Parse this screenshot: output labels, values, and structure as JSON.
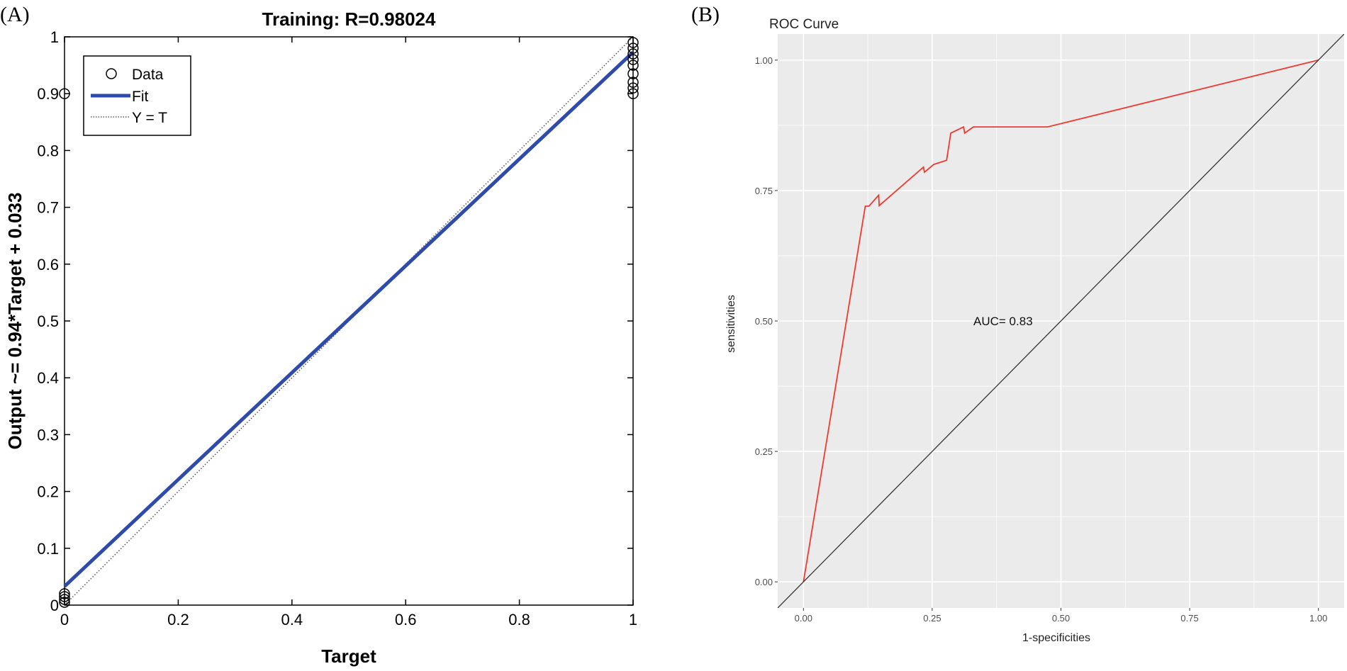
{
  "chart_data": [
    {
      "panel_label": "(A)",
      "type": "scatter",
      "title": "Training: R=0.98024",
      "xlabel": "Target",
      "ylabel": "Output ~= 0.94*Target + 0.033",
      "xlim": [
        0,
        1
      ],
      "ylim": [
        0,
        1
      ],
      "xticks": [
        "0",
        "0.2",
        "0.4",
        "0.6",
        "0.8",
        "1"
      ],
      "yticks": [
        "0",
        "0.1",
        "0.2",
        "0.3",
        "0.4",
        "0.5",
        "0.6",
        "0.7",
        "0.8",
        "0.9",
        "1"
      ],
      "grid": false,
      "legend_position": "top-left",
      "legend": [
        "Data",
        "Fit",
        "Y = T"
      ],
      "series": [
        {
          "name": "Data",
          "kind": "points",
          "color": "#000000",
          "x": [
            0,
            0,
            0,
            0,
            0,
            1,
            1,
            1,
            1,
            1,
            1,
            1,
            1,
            1
          ],
          "y": [
            0.005,
            0.01,
            0.015,
            0.02,
            0.9,
            0.9,
            0.91,
            0.92,
            0.935,
            0.95,
            0.96,
            0.97,
            0.98,
            0.99
          ]
        },
        {
          "name": "Fit",
          "kind": "line",
          "color": "#2e4bab",
          "slope": 0.94,
          "intercept": 0.033
        },
        {
          "name": "Y = T",
          "kind": "dotted-line",
          "color": "#555555",
          "slope": 1,
          "intercept": 0
        }
      ]
    },
    {
      "panel_label": "(B)",
      "type": "line",
      "title": "ROC Curve",
      "xlabel": "1-specificities",
      "ylabel": "sensitivities",
      "xlim": [
        -0.05,
        1.05
      ],
      "ylim": [
        -0.05,
        1.05
      ],
      "xticks": [
        "0.00",
        "0.25",
        "0.50",
        "0.75",
        "1.00"
      ],
      "yticks": [
        "0.00",
        "0.25",
        "0.50",
        "0.75",
        "1.00"
      ],
      "grid": true,
      "background": "#ebebeb",
      "annotation": "AUC= 0.83",
      "series": [
        {
          "kind": "roc",
          "color": "#f03a2e",
          "x": [
            0,
            0.12,
            0.127,
            0.146,
            0.147,
            0.233,
            0.235,
            0.253,
            0.278,
            0.286,
            0.311,
            0.313,
            0.33,
            0.474,
            1.0
          ],
          "y": [
            0,
            0.72,
            0.72,
            0.741,
            0.721,
            0.795,
            0.785,
            0.8,
            0.808,
            0.86,
            0.872,
            0.86,
            0.872,
            0.872,
            1.0
          ]
        },
        {
          "kind": "reference",
          "color": "#333333",
          "x": [
            -0.05,
            1.05
          ],
          "y": [
            -0.05,
            1.05
          ]
        }
      ]
    }
  ]
}
